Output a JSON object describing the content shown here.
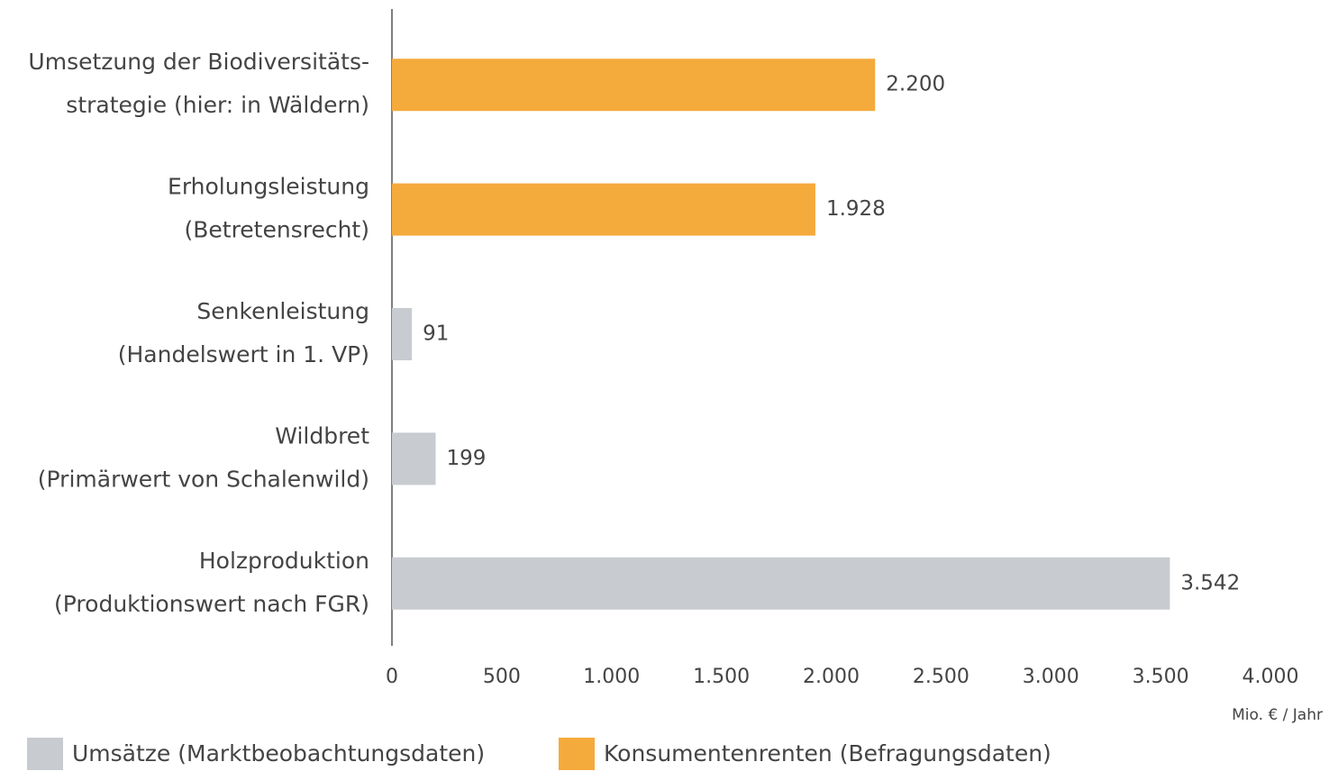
{
  "chart_data": {
    "type": "bar",
    "orientation": "horizontal",
    "categories": [
      [
        "Umsetzung der Biodiversitäts-",
        "strategie (hier: in Wäldern)"
      ],
      [
        "Erholungsleistung",
        "(Betretensrecht)"
      ],
      [
        "Senkenleistung",
        "(Handelswert in 1. VP)"
      ],
      [
        "Wildbret",
        "(Primärwert von Schalenwild)"
      ],
      [
        "Holzproduktion",
        "(Produktionswert nach FGR)"
      ]
    ],
    "series": [
      {
        "name": "Umsätze (Marktbeobachtungsdaten)",
        "color": "#c8cbcf",
        "values": [
          null,
          null,
          91,
          199,
          3542
        ],
        "value_labels": [
          null,
          null,
          "91",
          "199",
          "3.542"
        ]
      },
      {
        "name": "Konsumentenrenten (Befragungsdaten)",
        "color": "#f5aa3c",
        "values": [
          2200,
          1928,
          null,
          null,
          null
        ],
        "value_labels": [
          "2.200",
          "1.928",
          null,
          null,
          null
        ]
      }
    ],
    "xlim": [
      0,
      4000
    ],
    "xticks": [
      0,
      500,
      {
        "value": 1000,
        "label": "1.000"
      },
      {
        "value": 1500,
        "label": "1.500"
      },
      {
        "value": 2000,
        "label": "2.000"
      },
      {
        "value": 2500,
        "label": "2.500"
      },
      {
        "value": 3000,
        "label": "3.000"
      },
      {
        "value": 3500,
        "label": "3.500"
      },
      {
        "value": 4000,
        "label": "4.000"
      }
    ],
    "xlabel": "Mio. € / Jahr",
    "grid": false,
    "legend": "bottom"
  }
}
